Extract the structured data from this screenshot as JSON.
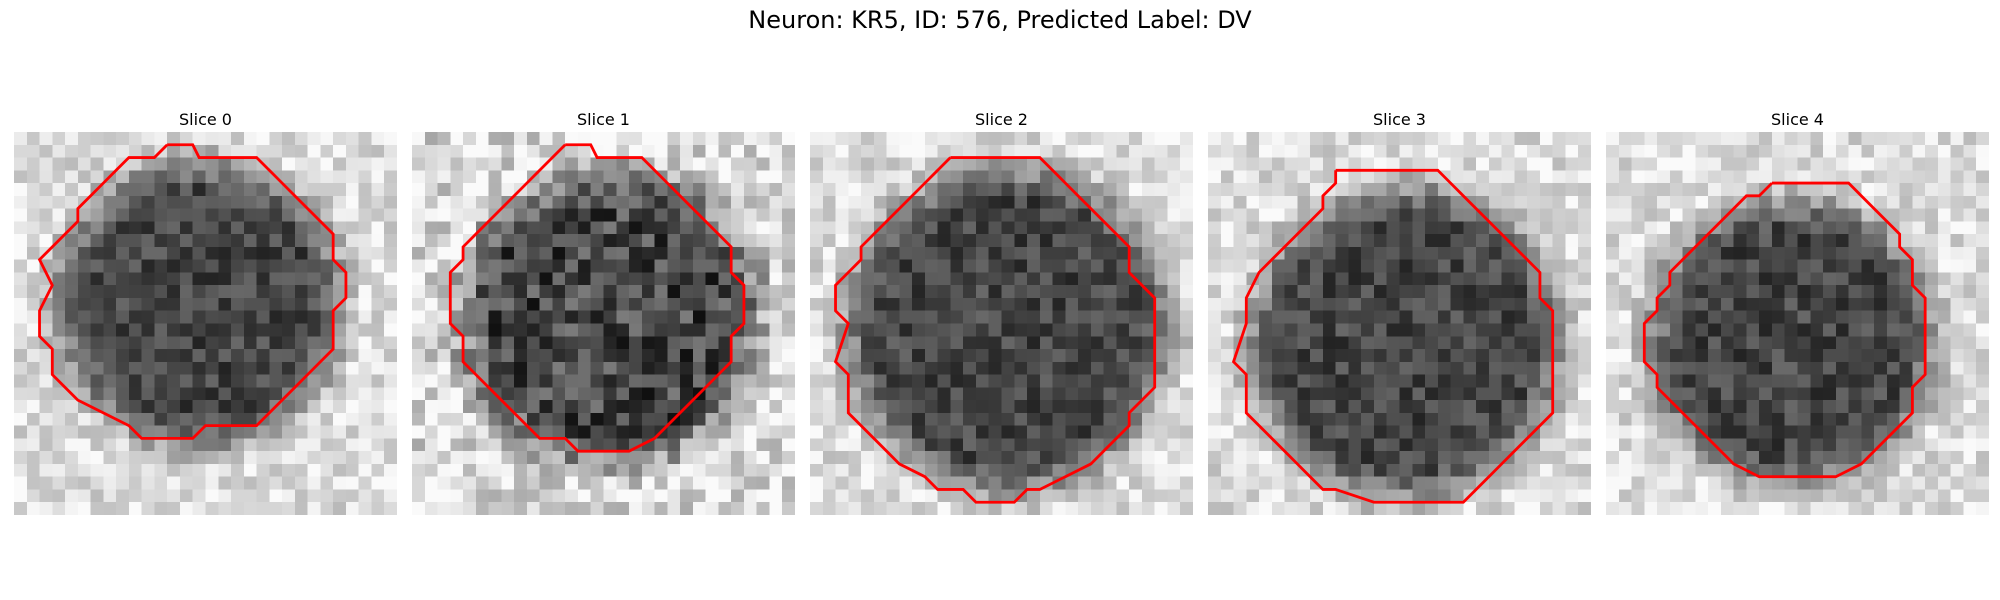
{
  "figure": {
    "suptitle": "Neuron: KR5, ID: 576, Predicted Label: DV"
  },
  "colors": {
    "contour": "#ff0000"
  },
  "panels": [
    {
      "title": "Slice 0"
    },
    {
      "title": "Slice 1"
    },
    {
      "title": "Slice 2"
    },
    {
      "title": "Slice 3"
    },
    {
      "title": "Slice 4"
    }
  ]
}
